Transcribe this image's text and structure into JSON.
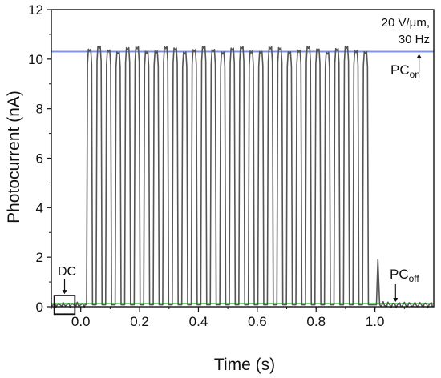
{
  "chart_data": {
    "type": "line",
    "xlabel": "Time (s)",
    "ylabel": "Photocurrent (nA)",
    "xlim": [
      -0.1,
      1.2
    ],
    "ylim": [
      0,
      12
    ],
    "x_ticks": [
      "0.0",
      "0.2",
      "0.4",
      "0.6",
      "0.8",
      "1.0"
    ],
    "y_ticks": [
      "0",
      "2",
      "4",
      "6",
      "8",
      "10",
      "12"
    ],
    "conditions_line1": "20 V/μm,",
    "conditions_line2": "30 Hz",
    "series": [
      {
        "style": "square-wave pulses",
        "color": "#555555",
        "baseline": 0.08,
        "pulse_peak": 10.4,
        "pulse_start": 0.02,
        "pulse_end": 0.99,
        "pulse_count": 30,
        "tail_spike_x": 1.01,
        "tail_spike_y": 1.9
      }
    ],
    "reference_lines": [
      {
        "y": 10.3,
        "color": "#8094e6"
      },
      {
        "y": 0.13,
        "color": "#66e066"
      }
    ],
    "annotations": {
      "dc_label": "DC",
      "dc_box_x": [
        -0.09,
        -0.02
      ],
      "dc_box_y": [
        -0.3,
        0.45
      ],
      "pc_on_main": "PC",
      "pc_on_sub": "on",
      "pc_on_x": 1.15,
      "pc_off_main": "PC",
      "pc_off_sub": "off",
      "pc_off_x": 1.07
    },
    "colors": {
      "axis": "#111111",
      "trace": "#555555",
      "on_line": "#8094e6",
      "off_line": "#66e066"
    }
  }
}
